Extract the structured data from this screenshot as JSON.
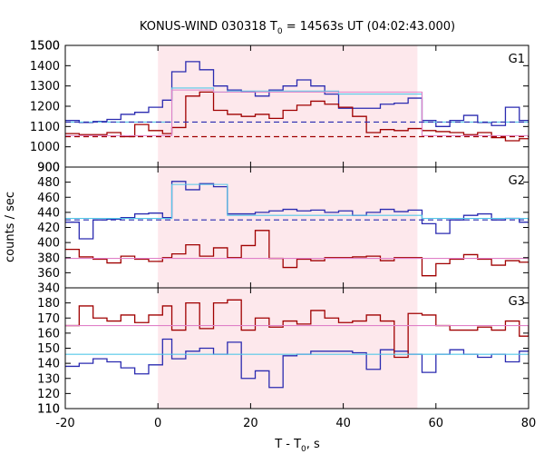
{
  "chart_data": {
    "type": "line",
    "title": {
      "main": "KONUS-WIND 030318 T",
      "sub": "0",
      "rest": " = 14563s UT (04:02:43.000)"
    },
    "xlabel": {
      "main": "T - T",
      "sub": "0",
      "rest": ", s"
    },
    "ylabel": "counts / sec",
    "xlim": [
      -20,
      80
    ],
    "x_ticks": [
      -20,
      0,
      20,
      40,
      60,
      80
    ],
    "x_tick_labels": [
      "-20",
      "0",
      "20",
      "40",
      "60",
      "80"
    ],
    "interval_shading": [
      0,
      56
    ],
    "grid": false,
    "colors": {
      "blue": "#2a2ab0",
      "red": "#a00000",
      "cyan": "#55c8e8",
      "pink": "#e080c8",
      "shade": "#fde8ec"
    },
    "panels": [
      {
        "label": "G1",
        "ylim": [
          900,
          1500
        ],
        "yticks": [
          900,
          1000,
          1100,
          1200,
          1300,
          1400,
          1500
        ],
        "yticklabels": [
          "900",
          "1000",
          "1100",
          "1200",
          "1300",
          "1400",
          "1500"
        ],
        "show_bottom_label": true,
        "series": [
          {
            "color": "blue",
            "kind": "step",
            "x": [
              -20,
              -17,
              -14,
              -11,
              -8,
              -5,
              -2,
              1,
              3,
              6,
              9,
              12,
              15,
              18,
              21,
              24,
              27,
              30,
              33,
              36,
              39,
              42,
              45,
              48,
              51,
              54,
              57,
              60,
              63,
              66,
              69,
              72,
              75,
              78,
              80
            ],
            "y": [
              1130,
              1120,
              1125,
              1135,
              1160,
              1170,
              1195,
              1230,
              1370,
              1420,
              1380,
              1300,
              1280,
              1270,
              1250,
              1280,
              1300,
              1330,
              1300,
              1260,
              1190,
              1190,
              1190,
              1210,
              1215,
              1240,
              1130,
              1100,
              1130,
              1155,
              1120,
              1105,
              1195,
              1130
            ]
          },
          {
            "color": "red",
            "kind": "step",
            "x": [
              -20,
              -17,
              -14,
              -11,
              -8,
              -5,
              -2,
              1,
              3,
              6,
              9,
              12,
              15,
              18,
              21,
              24,
              27,
              30,
              33,
              36,
              39,
              42,
              45,
              48,
              51,
              54,
              57,
              60,
              63,
              66,
              69,
              72,
              75,
              78,
              80
            ],
            "y": [
              1065,
              1060,
              1060,
              1070,
              1050,
              1110,
              1080,
              1065,
              1095,
              1250,
              1270,
              1180,
              1160,
              1150,
              1160,
              1140,
              1180,
              1205,
              1225,
              1210,
              1195,
              1150,
              1070,
              1085,
              1080,
              1090,
              1080,
              1075,
              1070,
              1060,
              1070,
              1045,
              1030,
              1040
            ]
          },
          {
            "color": "cyan",
            "kind": "step",
            "x": [
              -20,
              1,
              3,
              12,
              15,
              39,
              57,
              80
            ],
            "y": [
              1122,
              1122,
              1290,
              1270,
              1275,
              1260,
              1122
            ]
          },
          {
            "color": "pink",
            "kind": "step",
            "x": [
              -20,
              1,
              3,
              12,
              15,
              39,
              57,
              80
            ],
            "y": [
              1055,
              1055,
              1280,
              1270,
              1270,
              1270,
              1055
            ]
          },
          {
            "color": "blue",
            "kind": "dashed",
            "x": [
              -20,
              80
            ],
            "y": [
              1122,
              1122
            ]
          },
          {
            "color": "red",
            "kind": "dashed",
            "x": [
              -20,
              80
            ],
            "y": [
              1050,
              1050
            ]
          }
        ]
      },
      {
        "label": "G2",
        "ylim": [
          340,
          500
        ],
        "yticks": [
          360,
          380,
          400,
          420,
          440,
          460,
          480
        ],
        "yticklabels": [
          "360",
          "380",
          "400",
          "420",
          "440",
          "460",
          "480"
        ],
        "show_bottom_label": true,
        "series": [
          {
            "color": "blue",
            "kind": "step",
            "x": [
              -20,
              -17,
              -14,
              -11,
              -8,
              -5,
              -2,
              1,
              3,
              6,
              9,
              12,
              15,
              18,
              21,
              24,
              27,
              30,
              33,
              36,
              39,
              42,
              45,
              48,
              51,
              54,
              57,
              60,
              63,
              66,
              69,
              72,
              75,
              78,
              80
            ],
            "y": [
              427,
              405,
              430,
              431,
              433,
              438,
              439,
              433,
              481,
              470,
              478,
              474,
              438,
              438,
              440,
              442,
              444,
              442,
              443,
              440,
              442,
              436,
              440,
              444,
              441,
              443,
              425,
              412,
              430,
              436,
              438,
              430,
              432,
              427
            ]
          },
          {
            "color": "red",
            "kind": "step",
            "x": [
              -20,
              -17,
              -14,
              -11,
              -8,
              -5,
              -2,
              1,
              3,
              6,
              9,
              12,
              15,
              18,
              21,
              24,
              27,
              30,
              33,
              36,
              39,
              42,
              45,
              48,
              51,
              54,
              57,
              60,
              63,
              66,
              69,
              72,
              75,
              78,
              80
            ],
            "y": [
              391,
              381,
              378,
              373,
              382,
              378,
              375,
              380,
              385,
              397,
              382,
              393,
              380,
              396,
              416,
              379,
              367,
              378,
              376,
              380,
              380,
              381,
              382,
              376,
              380,
              380,
              356,
              372,
              378,
              384,
              378,
              370,
              376,
              374
            ]
          },
          {
            "color": "cyan",
            "kind": "step",
            "x": [
              -20,
              1,
              3,
              12,
              15,
              39,
              57,
              80
            ],
            "y": [
              432,
              432,
              477,
              477,
              436,
              436,
              432
            ]
          },
          {
            "color": "pink",
            "kind": "step",
            "x": [
              -20,
              80
            ],
            "y": [
              379
            ]
          },
          {
            "color": "blue",
            "kind": "dashed",
            "x": [
              -20,
              80
            ],
            "y": [
              430,
              430
            ]
          }
        ]
      },
      {
        "label": "G3",
        "ylim": [
          110,
          190
        ],
        "yticks": [
          110,
          120,
          130,
          140,
          150,
          160,
          170,
          180
        ],
        "yticklabels": [
          "110",
          "120",
          "130",
          "140",
          "150",
          "160",
          "170",
          "180"
        ],
        "show_bottom_label": true,
        "series": [
          {
            "color": "blue",
            "kind": "step",
            "x": [
              -20,
              -17,
              -14,
              -11,
              -8,
              -5,
              -2,
              1,
              3,
              6,
              9,
              12,
              15,
              18,
              21,
              24,
              27,
              30,
              33,
              36,
              39,
              42,
              45,
              48,
              51,
              54,
              57,
              60,
              63,
              66,
              69,
              72,
              75,
              78,
              80
            ],
            "y": [
              138,
              140,
              143,
              141,
              137,
              133,
              139,
              156,
              143,
              148,
              150,
              146,
              154,
              130,
              135,
              124,
              145,
              146,
              148,
              148,
              148,
              147,
              136,
              149,
              148,
              146,
              134,
              146,
              149,
              146,
              144,
              146,
              141,
              148,
              149
            ]
          },
          {
            "color": "red",
            "kind": "step",
            "x": [
              -20,
              -17,
              -14,
              -11,
              -8,
              -5,
              -2,
              1,
              3,
              6,
              9,
              12,
              15,
              18,
              21,
              24,
              27,
              30,
              33,
              36,
              39,
              42,
              45,
              48,
              51,
              54,
              57,
              60,
              63,
              66,
              69,
              72,
              75,
              78,
              80
            ],
            "y": [
              165,
              178,
              170,
              168,
              172,
              167,
              172,
              178,
              162,
              180,
              163,
              180,
              182,
              162,
              170,
              164,
              168,
              166,
              175,
              170,
              167,
              168,
              172,
              168,
              144,
              173,
              172,
              165,
              162,
              162,
              164,
              162,
              168,
              158,
              165
            ]
          },
          {
            "color": "pink",
            "kind": "step",
            "x": [
              -20,
              80
            ],
            "y": [
              165
            ]
          },
          {
            "color": "cyan",
            "kind": "step",
            "x": [
              -20,
              80
            ],
            "y": [
              146
            ]
          }
        ]
      }
    ]
  }
}
